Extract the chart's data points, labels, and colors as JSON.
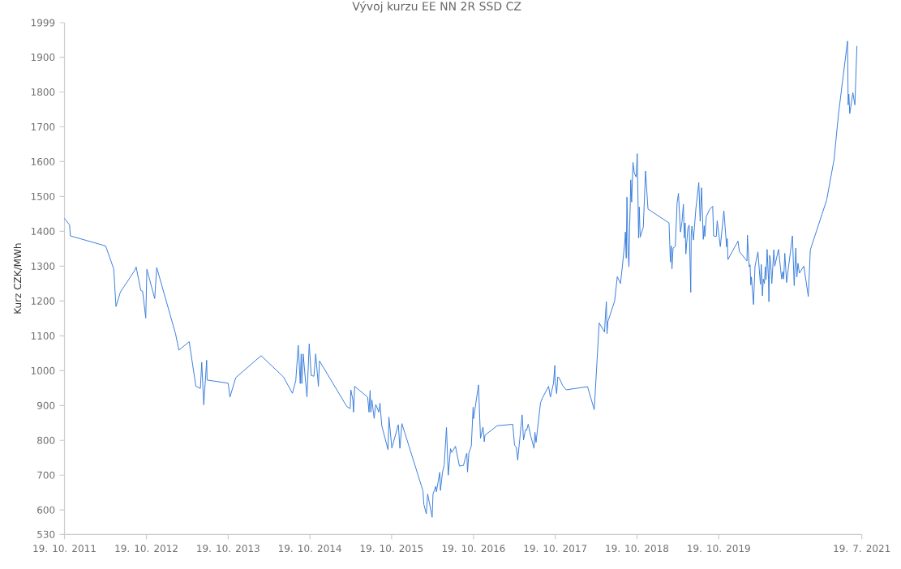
{
  "chart_data": {
    "type": "line",
    "title": "Vývoj kurzu EE NN 2R SSD CZ",
    "ylabel": "Kurz CZK/MWh",
    "x": [
      "2011-10-19",
      "2011-11-11",
      "2011-11-14",
      "2012-04-20",
      "2012-05-26",
      "2012-06-05",
      "2012-06-25",
      "2012-08-27",
      "2012-09-03",
      "2012-09-24",
      "2012-10-02",
      "2012-10-16",
      "2012-10-21",
      "2012-11-25",
      "2012-12-04",
      "2013-02-26",
      "2013-03-13",
      "2013-04-28",
      "2013-05-28",
      "2013-06-17",
      "2013-06-23",
      "2013-07-02",
      "2013-07-15",
      "2013-07-17",
      "2013-10-19",
      "2013-10-27",
      "2013-11-22",
      "2014-03-15",
      "2014-06-23",
      "2014-08-02",
      "2014-08-17",
      "2014-08-28",
      "2014-09-06",
      "2014-09-10",
      "2014-09-13",
      "2014-09-19",
      "2014-10-06",
      "2014-10-16",
      "2014-10-25",
      "2014-11-06",
      "2014-11-14",
      "2014-11-21",
      "2014-11-26",
      "2014-12-01",
      "2015-04-02",
      "2015-04-17",
      "2015-04-20",
      "2015-04-29",
      "2015-05-02",
      "2015-05-07",
      "2015-07-04",
      "2015-07-10",
      "2015-07-15",
      "2015-07-18",
      "2015-07-23",
      "2015-08-02",
      "2015-08-09",
      "2015-08-23",
      "2015-08-28",
      "2015-09-05",
      "2015-10-03",
      "2015-10-07",
      "2015-10-20",
      "2015-11-18",
      "2015-11-25",
      "2015-12-04",
      "2016-03-07",
      "2016-03-11",
      "2016-03-22",
      "2016-03-28",
      "2016-04-17",
      "2016-04-21",
      "2016-05-03",
      "2016-05-06",
      "2016-05-21",
      "2016-05-24",
      "2016-06-02",
      "2016-06-10",
      "2016-06-20",
      "2016-06-28",
      "2016-07-08",
      "2016-07-14",
      "2016-07-30",
      "2016-08-17",
      "2016-09-04",
      "2016-09-12",
      "2016-09-19",
      "2016-09-22",
      "2016-09-28",
      "2016-10-09",
      "2016-10-17",
      "2016-10-19",
      "2016-11-10",
      "2016-11-19",
      "2016-11-30",
      "2016-12-06",
      "2016-12-09",
      "2017-02-02",
      "2017-04-12",
      "2017-04-20",
      "2017-04-28",
      "2017-05-04",
      "2017-05-24",
      "2017-05-30",
      "2017-06-08",
      "2017-06-13",
      "2017-06-20",
      "2017-07-02",
      "2017-07-16",
      "2017-07-20",
      "2017-07-25",
      "2017-08-14",
      "2017-08-23",
      "2017-09-19",
      "2017-09-27",
      "2017-10-11",
      "2017-10-17",
      "2017-10-18",
      "2017-10-25",
      "2017-10-30",
      "2017-11-05",
      "2017-11-21",
      "2017-12-07",
      "2018-03-12",
      "2018-04-11",
      "2018-05-03",
      "2018-05-27",
      "2018-05-31",
      "2018-06-04",
      "2018-06-07",
      "2018-06-11",
      "2018-07-11",
      "2018-07-23",
      "2018-08-06",
      "2018-08-14",
      "2018-08-26",
      "2018-08-28",
      "2018-09-01",
      "2018-09-04",
      "2018-09-09",
      "2018-09-13",
      "2018-09-16",
      "2018-09-19",
      "2018-09-21",
      "2018-09-25",
      "2018-10-01",
      "2018-10-07",
      "2018-10-15",
      "2018-10-20",
      "2018-10-26",
      "2018-10-29",
      "2018-11-02",
      "2018-11-16",
      "2018-11-26",
      "2018-12-07",
      "2019-03-11",
      "2019-03-17",
      "2019-03-21",
      "2019-03-24",
      "2019-03-29",
      "2019-04-08",
      "2019-04-16",
      "2019-04-22",
      "2019-05-01",
      "2019-05-08",
      "2019-05-14",
      "2019-05-18",
      "2019-05-22",
      "2019-05-25",
      "2019-06-03",
      "2019-06-09",
      "2019-06-16",
      "2019-06-18",
      "2019-06-21",
      "2019-06-28",
      "2019-07-09",
      "2019-07-22",
      "2019-07-28",
      "2019-08-03",
      "2019-08-11",
      "2019-08-15",
      "2019-08-18",
      "2019-08-24",
      "2019-09-08",
      "2019-09-22",
      "2019-09-26",
      "2019-10-08",
      "2019-10-12",
      "2019-10-26",
      "2019-11-11",
      "2019-11-23",
      "2019-11-26",
      "2019-11-29",
      "2020-01-13",
      "2020-01-19",
      "2020-02-22",
      "2020-02-24",
      "2020-03-03",
      "2020-03-07",
      "2020-03-10",
      "2020-03-13",
      "2020-03-22",
      "2020-03-29",
      "2020-04-11",
      "2020-04-22",
      "2020-04-26",
      "2020-05-01",
      "2020-05-05",
      "2020-05-10",
      "2020-05-14",
      "2020-05-17",
      "2020-05-22",
      "2020-05-28",
      "2020-05-30",
      "2020-06-02",
      "2020-06-06",
      "2020-06-12",
      "2020-06-21",
      "2020-06-25",
      "2020-07-12",
      "2020-07-26",
      "2020-07-31",
      "2020-08-04",
      "2020-08-09",
      "2020-08-17",
      "2020-09-12",
      "2020-09-20",
      "2020-09-27",
      "2020-10-02",
      "2020-10-07",
      "2020-10-13",
      "2020-11-02",
      "2020-11-22",
      "2020-12-01",
      "2021-02-12",
      "2021-03-17",
      "2021-04-06",
      "2021-05-16",
      "2021-05-19",
      "2021-05-22",
      "2021-05-26",
      "2021-06-09",
      "2021-06-18",
      "2021-06-27"
    ],
    "series": [
      {
        "color": "#3c7fdb",
        "values": [
          1437,
          1418,
          1387,
          1358,
          1292,
          1184,
          1226,
          1287,
          1298,
          1230,
          1228,
          1151,
          1291,
          1207,
          1296,
          1106,
          1059,
          1083,
          955,
          949,
          1024,
          902,
          1030,
          973,
          964,
          924,
          980,
          1043,
          982,
          935,
          971,
          1073,
          963,
          1048,
          963,
          1048,
          924,
          1077,
          986,
          984,
          1048,
          994,
          955,
          1028,
          897,
          891,
          945,
          916,
          881,
          955,
          924,
          881,
          943,
          881,
          916,
          863,
          903,
          881,
          907,
          842,
          773,
          867,
          778,
          845,
          777,
          848,
          655,
          616,
          589,
          646,
          579,
          646,
          668,
          652,
          708,
          656,
          707,
          730,
          837,
          700,
          776,
          765,
          783,
          726,
          728,
          749,
          763,
          709,
          763,
          784,
          895,
          862,
          959,
          806,
          838,
          796,
          815,
          842,
          846,
          786,
          780,
          743,
          873,
          801,
          831,
          829,
          846,
          811,
          777,
          823,
          794,
          908,
          922,
          955,
          924,
          964,
          1015,
          970,
          934,
          982,
          980,
          957,
          945,
          954,
          888,
          1137,
          1111,
          1160,
          1198,
          1106,
          1141,
          1200,
          1270,
          1250,
          1296,
          1373,
          1398,
          1323,
          1498,
          1342,
          1298,
          1412,
          1484,
          1548,
          1484,
          1598,
          1567,
          1556,
          1623,
          1381,
          1470,
          1383,
          1412,
          1573,
          1464,
          1424,
          1312,
          1358,
          1292,
          1352,
          1357,
          1482,
          1509,
          1398,
          1428,
          1478,
          1381,
          1424,
          1335,
          1408,
          1418,
          1225,
          1389,
          1415,
          1375,
          1466,
          1540,
          1429,
          1525,
          1377,
          1416,
          1385,
          1442,
          1463,
          1472,
          1387,
          1385,
          1430,
          1356,
          1459,
          1355,
          1379,
          1319,
          1372,
          1342,
          1315,
          1389,
          1298,
          1304,
          1246,
          1269,
          1190,
          1300,
          1341,
          1248,
          1305,
          1215,
          1263,
          1250,
          1298,
          1261,
          1348,
          1263,
          1198,
          1331,
          1319,
          1250,
          1347,
          1300,
          1348,
          1263,
          1284,
          1263,
          1337,
          1253,
          1387,
          1244,
          1352,
          1269,
          1308,
          1280,
          1300,
          1213,
          1347,
          1490,
          1606,
          1738,
          1946,
          1763,
          1794,
          1738,
          1798,
          1763,
          1932
        ]
      }
    ],
    "xlim": [
      "2011-10-19",
      "2021-07-19"
    ],
    "ylim": [
      530,
      1999
    ],
    "xticks": [
      {
        "value": "2011-10-19",
        "label": "19. 10. 2011"
      },
      {
        "value": "2012-10-19",
        "label": "19. 10. 2012"
      },
      {
        "value": "2013-10-19",
        "label": "19. 10. 2013"
      },
      {
        "value": "2014-10-19",
        "label": "19. 10. 2014"
      },
      {
        "value": "2015-10-19",
        "label": "19. 10. 2015"
      },
      {
        "value": "2016-10-19",
        "label": "19. 10. 2016"
      },
      {
        "value": "2017-10-19",
        "label": "19. 10. 2017"
      },
      {
        "value": "2018-10-19",
        "label": "19. 10. 2018"
      },
      {
        "value": "2019-10-19",
        "label": "19. 10. 2019"
      },
      {
        "value": "2021-07-19",
        "label": "19. 7. 2021"
      }
    ],
    "yticks": [
      530,
      600,
      700,
      800,
      900,
      1000,
      1100,
      1200,
      1300,
      1400,
      1500,
      1600,
      1700,
      1800,
      1900,
      1999
    ],
    "grid": false
  }
}
